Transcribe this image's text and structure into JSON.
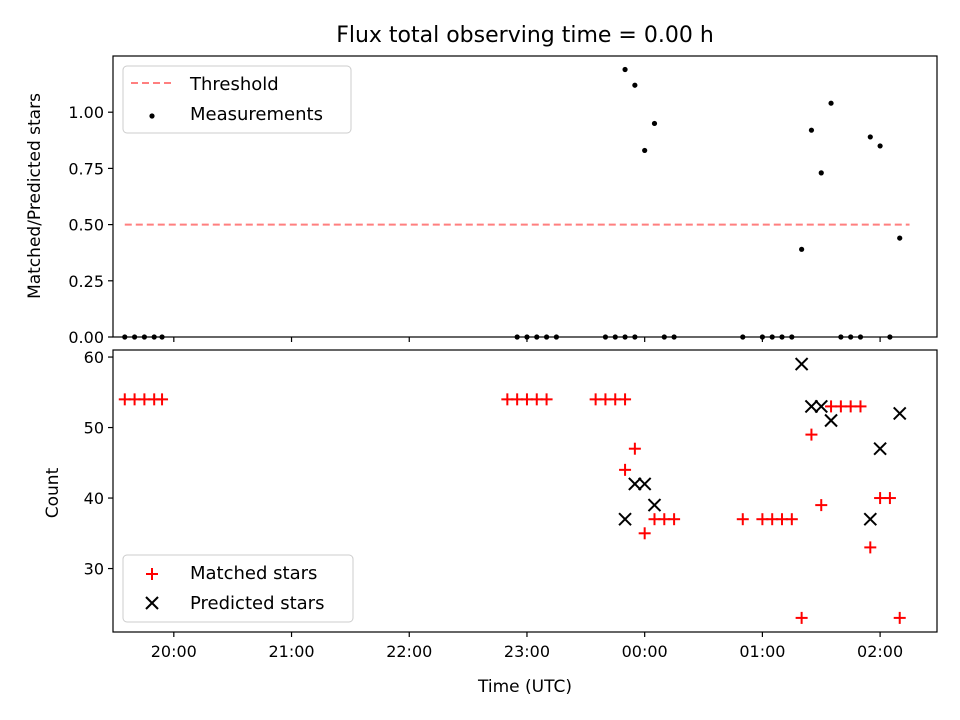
{
  "chart_data": [
    {
      "type": "scatter",
      "title": "Flux total observing time = 0.00 h",
      "xlabel": "",
      "ylabel": "Matched/Predicted stars",
      "xlim": [
        "19:29",
        "02:29"
      ],
      "ylim": [
        0,
        1.25
      ],
      "yticks": [
        0.0,
        0.25,
        0.5,
        0.75,
        1.0
      ],
      "ytick_labels": [
        "0.00",
        "0.25",
        "0.50",
        "0.75",
        "1.00"
      ],
      "grid": false,
      "legend": {
        "placement": "top-left",
        "entries": [
          "Threshold",
          "Measurements"
        ]
      },
      "series": [
        {
          "name": "Threshold",
          "style": "dashed-line",
          "color": "#ff7f7f",
          "points": [
            [
              "19:35",
              0.5
            ],
            [
              "02:15",
              0.5
            ]
          ]
        },
        {
          "name": "Measurements",
          "style": "dot",
          "color": "#000000",
          "points": [
            [
              "19:35",
              0.0
            ],
            [
              "19:40",
              0.0
            ],
            [
              "19:45",
              0.0
            ],
            [
              "19:50",
              0.0
            ],
            [
              "19:54",
              0.0
            ],
            [
              "22:55",
              0.0
            ],
            [
              "23:00",
              0.0
            ],
            [
              "23:05",
              0.0
            ],
            [
              "23:10",
              0.0
            ],
            [
              "23:15",
              0.0
            ],
            [
              "23:40",
              0.0
            ],
            [
              "23:45",
              0.0
            ],
            [
              "23:50",
              0.0
            ],
            [
              "23:55",
              0.0
            ],
            [
              "23:50",
              1.19
            ],
            [
              "23:55",
              1.12
            ],
            [
              "00:00",
              0.83
            ],
            [
              "00:05",
              0.95
            ],
            [
              "00:10",
              0.0
            ],
            [
              "00:15",
              0.0
            ],
            [
              "00:50",
              0.0
            ],
            [
              "01:00",
              0.0
            ],
            [
              "01:05",
              0.0
            ],
            [
              "01:10",
              0.0
            ],
            [
              "01:15",
              0.0
            ],
            [
              "01:20",
              0.39
            ],
            [
              "01:25",
              0.92
            ],
            [
              "01:30",
              0.73
            ],
            [
              "01:35",
              1.04
            ],
            [
              "01:40",
              0.0
            ],
            [
              "01:45",
              0.0
            ],
            [
              "01:50",
              0.0
            ],
            [
              "01:55",
              0.89
            ],
            [
              "02:00",
              0.85
            ],
            [
              "02:05",
              0.0
            ],
            [
              "02:10",
              0.44
            ]
          ]
        }
      ]
    },
    {
      "type": "scatter",
      "title": "",
      "xlabel": "Time (UTC)",
      "ylabel": "Count",
      "xlim": [
        "19:29",
        "02:29"
      ],
      "ylim": [
        21,
        61
      ],
      "yticks": [
        30,
        40,
        50,
        60
      ],
      "ytick_labels": [
        "30",
        "40",
        "50",
        "60"
      ],
      "xticks": [
        "20:00",
        "21:00",
        "22:00",
        "23:00",
        "00:00",
        "01:00",
        "02:00"
      ],
      "grid": false,
      "legend": {
        "placement": "bottom-left",
        "entries": [
          "Matched stars",
          "Predicted stars"
        ]
      },
      "series": [
        {
          "name": "Matched stars",
          "style": "plus",
          "color": "#ff0000",
          "points": [
            [
              "19:35",
              54
            ],
            [
              "19:40",
              54
            ],
            [
              "19:45",
              54
            ],
            [
              "19:50",
              54
            ],
            [
              "19:54",
              54
            ],
            [
              "22:50",
              54
            ],
            [
              "22:55",
              54
            ],
            [
              "23:00",
              54
            ],
            [
              "23:05",
              54
            ],
            [
              "23:10",
              54
            ],
            [
              "23:35",
              54
            ],
            [
              "23:40",
              54
            ],
            [
              "23:45",
              54
            ],
            [
              "23:50",
              54
            ],
            [
              "23:50",
              44
            ],
            [
              "23:55",
              47
            ],
            [
              "00:00",
              35
            ],
            [
              "00:05",
              37
            ],
            [
              "00:10",
              37
            ],
            [
              "00:15",
              37
            ],
            [
              "00:50",
              37
            ],
            [
              "01:00",
              37
            ],
            [
              "01:05",
              37
            ],
            [
              "01:10",
              37
            ],
            [
              "01:15",
              37
            ],
            [
              "01:20",
              23
            ],
            [
              "01:25",
              49
            ],
            [
              "01:30",
              39
            ],
            [
              "01:35",
              53
            ],
            [
              "01:40",
              53
            ],
            [
              "01:45",
              53
            ],
            [
              "01:50",
              53
            ],
            [
              "01:55",
              33
            ],
            [
              "02:00",
              40
            ],
            [
              "02:05",
              40
            ],
            [
              "02:10",
              23
            ]
          ]
        },
        {
          "name": "Predicted stars",
          "style": "x",
          "color": "#000000",
          "points": [
            [
              "23:50",
              37
            ],
            [
              "23:55",
              42
            ],
            [
              "00:00",
              42
            ],
            [
              "00:05",
              39
            ],
            [
              "01:20",
              59
            ],
            [
              "01:25",
              53
            ],
            [
              "01:30",
              53
            ],
            [
              "01:35",
              51
            ],
            [
              "01:55",
              37
            ],
            [
              "02:00",
              47
            ],
            [
              "02:10",
              52
            ]
          ]
        }
      ]
    }
  ]
}
